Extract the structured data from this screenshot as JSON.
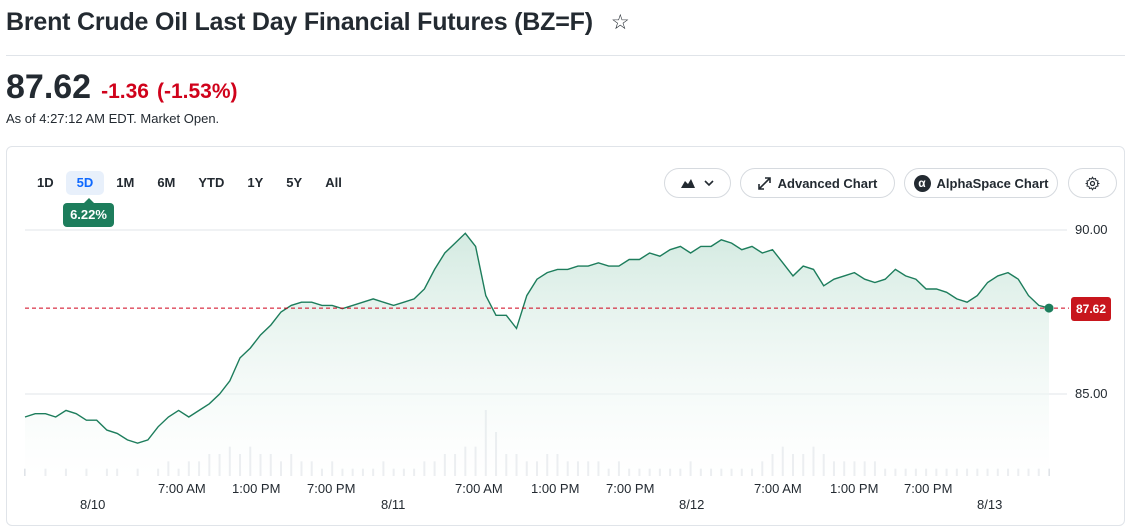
{
  "header": {
    "title": "Brent Crude Oil Last Day Financial Futures (BZ=F)",
    "star_icon": "star-outline-icon"
  },
  "quote": {
    "price": "87.62",
    "change": "-1.36",
    "change_pct": "(-1.53%)",
    "as_of": "As of 4:27:12 AM EDT. Market Open.",
    "change_color": "#d0021b"
  },
  "toolbar": {
    "ranges": [
      "1D",
      "5D",
      "1M",
      "6M",
      "YTD",
      "1Y",
      "5Y",
      "All"
    ],
    "active_range": "5D",
    "range_change_badge": "6.22%",
    "chart_type_icon": "mountain-chart-icon",
    "advanced_chart_label": "Advanced Chart",
    "advanced_chart_icon": "expand-arrows-icon",
    "alphaspace_label": "AlphaSpace Chart",
    "alphaspace_icon": "alpha-logo-icon",
    "settings_icon": "gear-icon"
  },
  "chart_data": {
    "type": "area",
    "line_color": "#1d7d5c",
    "fill_color": "#e3f1ec",
    "reference_line_color": "#d0021b",
    "y_ticks": [
      "90.00",
      "85.00"
    ],
    "y_tick_values": [
      90,
      85
    ],
    "ylim": [
      82.5,
      90.35
    ],
    "x_date_labels": [
      "8/10",
      "8/11",
      "8/12",
      "8/13"
    ],
    "x_time_labels": [
      "7:00 AM",
      "1:00 PM",
      "7:00 PM",
      "7:00 AM",
      "1:00 PM",
      "7:00 PM",
      "7:00 AM",
      "1:00 PM",
      "7:00 PM"
    ],
    "last_price_label": "87.62",
    "reference_value": 87.62,
    "x_range": [
      0,
      100
    ],
    "x": [
      0,
      1,
      2,
      3,
      4,
      5,
      6,
      7,
      8,
      9,
      10,
      11,
      12,
      13,
      14,
      15,
      16,
      17,
      18,
      19,
      20,
      21,
      22,
      23,
      24,
      25,
      26,
      27,
      28,
      29,
      30,
      31,
      32,
      33,
      34,
      35,
      36,
      37,
      38,
      39,
      40,
      41,
      42,
      43,
      44,
      45,
      46,
      47,
      48,
      49,
      50,
      51,
      52,
      53,
      54,
      55,
      56,
      57,
      58,
      59,
      60,
      61,
      62,
      63,
      64,
      65,
      66,
      67,
      68,
      69,
      70,
      71,
      72,
      73,
      74,
      75,
      76,
      77,
      78,
      79,
      80,
      81,
      82,
      83,
      84,
      85,
      86,
      87,
      88,
      89,
      90,
      91,
      92,
      93,
      94,
      95,
      96,
      97,
      98,
      99,
      100
    ],
    "values": [
      84.3,
      84.4,
      84.4,
      84.3,
      84.5,
      84.4,
      84.2,
      84.2,
      83.9,
      83.8,
      83.6,
      83.5,
      83.6,
      84.0,
      84.3,
      84.5,
      84.3,
      84.5,
      84.7,
      85.0,
      85.4,
      86.1,
      86.4,
      86.8,
      87.1,
      87.5,
      87.7,
      87.8,
      87.8,
      87.7,
      87.7,
      87.6,
      87.7,
      87.8,
      87.9,
      87.8,
      87.7,
      87.8,
      87.9,
      88.2,
      88.8,
      89.3,
      89.6,
      89.9,
      89.5,
      88.0,
      87.4,
      87.4,
      87.0,
      88.0,
      88.5,
      88.7,
      88.8,
      88.8,
      88.9,
      88.9,
      89.0,
      88.9,
      88.9,
      89.1,
      89.1,
      89.3,
      89.2,
      89.4,
      89.5,
      89.3,
      89.5,
      89.5,
      89.7,
      89.6,
      89.4,
      89.5,
      89.3,
      89.4,
      89.0,
      88.6,
      88.9,
      88.8,
      88.3,
      88.5,
      88.6,
      88.7,
      88.5,
      88.4,
      88.5,
      88.8,
      88.6,
      88.5,
      88.2,
      88.2,
      88.1,
      87.9,
      87.8,
      88.0,
      88.4,
      88.6,
      88.7,
      88.5,
      88.0,
      87.7,
      87.62
    ],
    "volume": [
      1,
      0,
      1,
      0,
      1,
      0,
      1,
      0,
      1,
      1,
      0,
      1,
      0,
      1,
      2,
      1,
      2,
      2,
      3,
      3,
      4,
      3,
      4,
      3,
      3,
      2,
      3,
      2,
      2,
      1,
      2,
      1,
      1,
      1,
      1,
      2,
      1,
      1,
      1,
      2,
      2,
      3,
      3,
      4,
      4,
      9,
      6,
      3,
      3,
      2,
      2,
      3,
      3,
      2,
      2,
      2,
      2,
      1,
      2,
      1,
      1,
      1,
      1,
      1,
      1,
      2,
      1,
      1,
      1,
      1,
      1,
      1,
      2,
      3,
      4,
      3,
      3,
      4,
      3,
      2,
      2,
      2,
      2,
      2,
      1,
      1,
      1,
      1,
      1,
      1,
      1,
      1,
      1,
      1,
      1,
      1,
      1,
      1,
      1,
      1,
      1
    ]
  }
}
